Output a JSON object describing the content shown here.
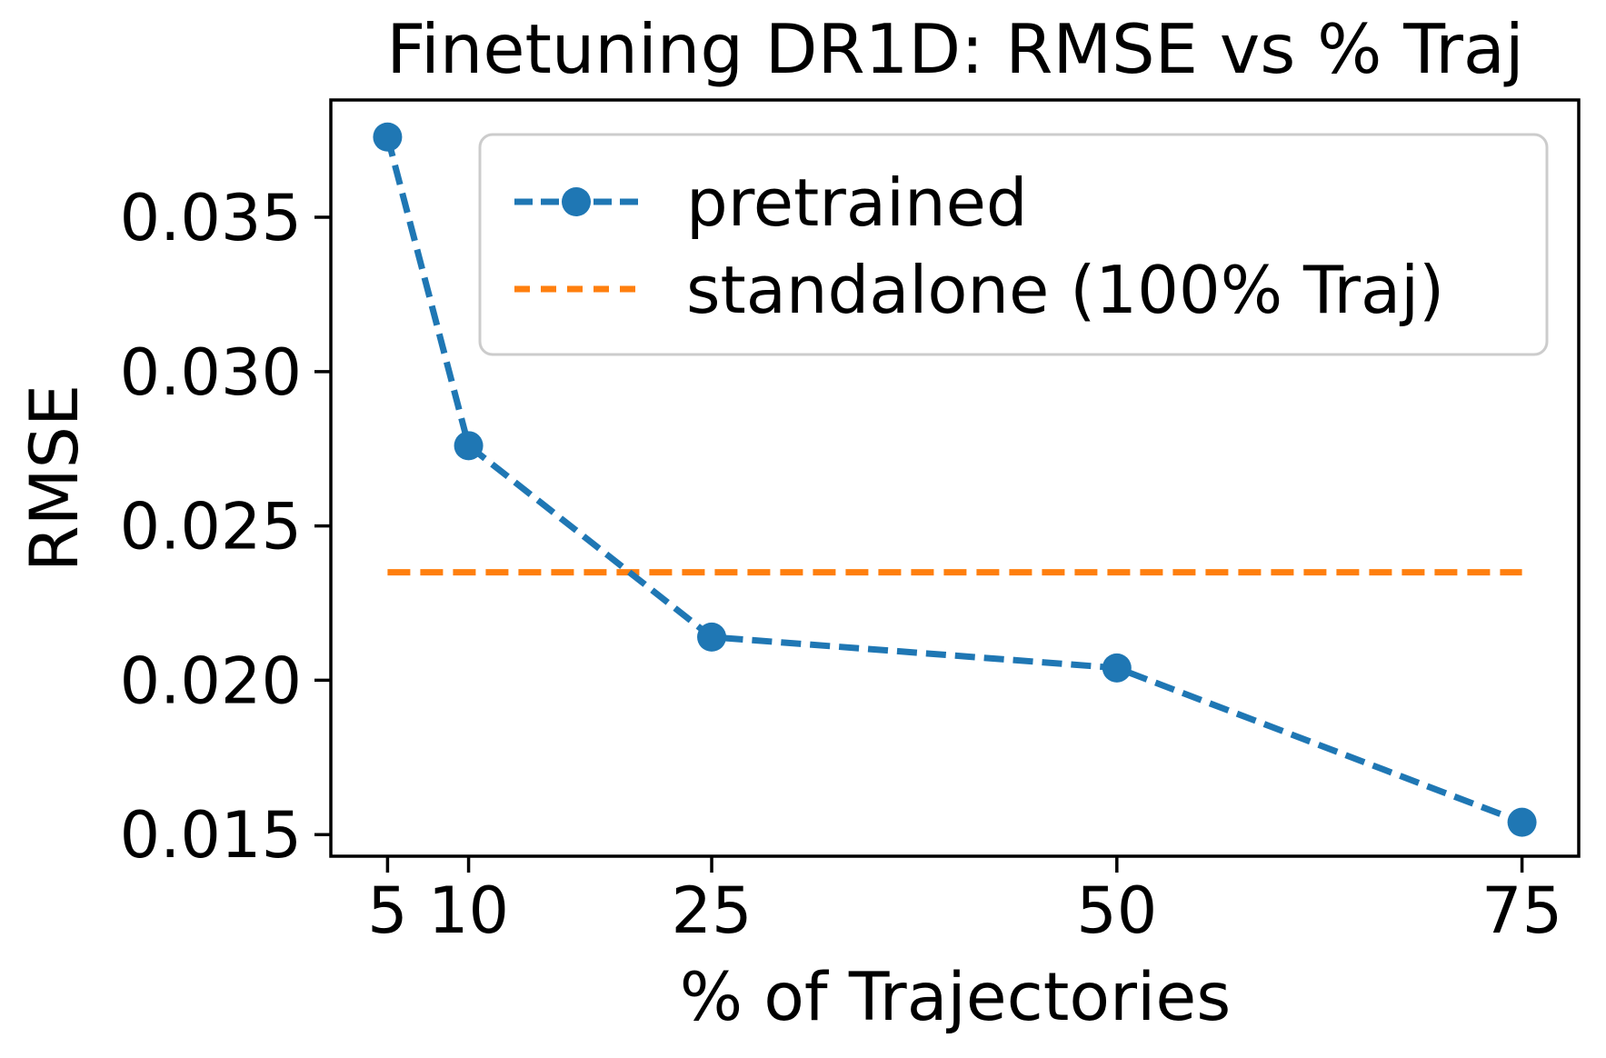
{
  "chart_data": {
    "type": "line",
    "title": "Finetuning DR1D: RMSE vs % Traj",
    "xlabel": "% of Trajectories",
    "ylabel": "RMSE",
    "x_ticks": [
      5,
      10,
      25,
      50,
      75
    ],
    "y_ticks": [
      0.015,
      0.02,
      0.025,
      0.03,
      0.035
    ],
    "xlim": [
      1.5,
      78.5
    ],
    "ylim": [
      0.0143,
      0.0388
    ],
    "grid": false,
    "legend_position": "upper right inside axes",
    "series": [
      {
        "name": "pretrained",
        "style": "dashed line with circle markers",
        "color": "#1f77b4",
        "x": [
          5,
          10,
          25,
          50,
          75
        ],
        "y": [
          0.0376,
          0.0276,
          0.0214,
          0.0204,
          0.0154
        ]
      },
      {
        "name": "standalone (100% Traj)",
        "style": "dashed horizontal line",
        "color": "#ff7f0e",
        "x": [
          5,
          75
        ],
        "y": 0.0235
      }
    ],
    "axis_color": "#000000",
    "background_color": "#ffffff"
  }
}
